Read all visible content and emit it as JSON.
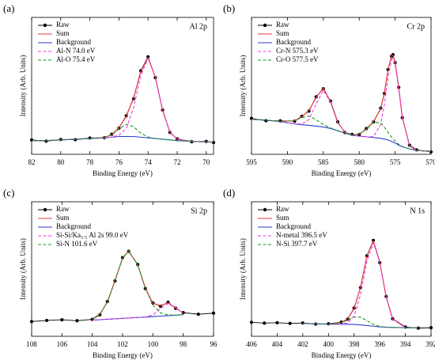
{
  "chart_data": [
    {
      "type": "line",
      "label": "(a)",
      "title": "Al 2p",
      "xlabel": "Binding Energy (eV)",
      "ylabel": "Intensity (Arb. Units)",
      "xlim": [
        82,
        69.5
      ],
      "ylim": [
        0,
        100
      ],
      "xticks": [
        82,
        80,
        78,
        76,
        74,
        72,
        70
      ],
      "x": [
        82,
        81,
        80,
        79,
        78,
        77,
        76.5,
        76,
        75.5,
        75,
        74.5,
        74,
        73.5,
        73,
        72.5,
        72,
        71,
        70,
        69.5
      ],
      "series": [
        {
          "name": "Raw",
          "color": "#000000",
          "marker": "circle",
          "values": [
            10.5,
            9.6,
            10.8,
            10.7,
            11.9,
            12.1,
            14.6,
            19.1,
            28.2,
            40.5,
            61,
            71.2,
            56,
            32.4,
            16,
            11.3,
            9.2,
            9.4,
            8.6
          ]
        },
        {
          "name": "Sum",
          "color": "#e8383d",
          "values": [
            10,
            10,
            10.5,
            11,
            11.5,
            12.3,
            14.3,
            19.5,
            27.7,
            41.1,
            60.4,
            70.6,
            56.5,
            31.9,
            16.3,
            11,
            9.5,
            9,
            9
          ]
        },
        {
          "name": "Background",
          "color": "#2b3bd8",
          "values": [
            10,
            10,
            10.5,
            11,
            11.5,
            12,
            12.5,
            13,
            13,
            13,
            12.5,
            12,
            11.5,
            11,
            10.5,
            10,
            9.5,
            9,
            9
          ]
        },
        {
          "name": "Al-N 74.0 eV",
          "color": "#f03ce0",
          "dash": true,
          "values": [
            10,
            10,
            10.5,
            11,
            11.5,
            12,
            12.6,
            14,
            18.8,
            33.9,
            57.5,
            70,
            56.5,
            31.9,
            16.3,
            11,
            9.5,
            9,
            9
          ]
        },
        {
          "name": "Al-O 75.4 eV",
          "color": "#1a9a1a",
          "dash": true,
          "values": [
            10,
            10,
            10.5,
            11,
            11.5,
            12.3,
            14.2,
            18.5,
            21.9,
            20.2,
            15.4,
            12.6,
            11.5,
            11,
            10.5,
            10,
            9.5,
            9,
            9
          ]
        }
      ]
    },
    {
      "type": "line",
      "label": "(b)",
      "title": "Cr 2p",
      "xlabel": "Binding Energy (eV)",
      "ylabel": "Intensity (Arb. Units)",
      "xlim": [
        595,
        570
      ],
      "ylim": [
        0,
        90
      ],
      "xticks": [
        595,
        590,
        585,
        580,
        575,
        570
      ],
      "x": [
        595,
        593,
        591,
        589,
        588,
        587,
        586,
        585,
        584,
        583,
        582,
        581,
        580,
        579,
        578,
        577,
        576.5,
        576,
        575.5,
        575.3,
        575,
        574.5,
        574,
        573,
        572,
        570
      ],
      "series": [
        {
          "name": "Raw",
          "color": "#000000",
          "marker": "circle",
          "values": [
            23.6,
            22.1,
            22,
            21.8,
            25,
            28.4,
            37.8,
            43.1,
            35,
            21.4,
            14.3,
            13.1,
            13,
            16.9,
            21.3,
            30.4,
            40,
            55.7,
            64.4,
            65.5,
            60.3,
            44,
            24.1,
            6,
            2.9,
            1.6
          ]
        },
        {
          "name": "Sum",
          "color": "#e8383d",
          "values": [
            23,
            22.5,
            21.6,
            22.1,
            24.65,
            28.9,
            37.3,
            43.6,
            34.55,
            20.9,
            14.7,
            12.7,
            13.3,
            16.5,
            21.7,
            29.9,
            40.4,
            55.2,
            64.9,
            65,
            60.8,
            43.5,
            24.6,
            5.6,
            2.5,
            2
          ]
        },
        {
          "name": "Background",
          "color": "#2b3bd8",
          "values": [
            23,
            22.5,
            21.5,
            20,
            19.5,
            19,
            18.5,
            18,
            17,
            15.5,
            14,
            12.5,
            12,
            11.5,
            11,
            10.5,
            10,
            9.5,
            8.5,
            8,
            7.5,
            6,
            5,
            3.5,
            2.5,
            2
          ]
        },
        {
          "name": "Cr-N 575.3 eV",
          "color": "#f03ce0",
          "dash": true,
          "values": [
            23,
            22.5,
            21.5,
            20,
            19.95,
            22.9,
            33.1,
            42,
            34.2,
            20.9,
            14.7,
            12.5,
            12,
            11.5,
            11.6,
            19.8,
            32.6,
            50.2,
            62.2,
            63,
            59.5,
            43,
            24.4,
            5.6,
            2.5,
            2
          ]
        },
        {
          "name": "Cr-O 577.5 eV",
          "color": "#1a9a1a",
          "dash": true,
          "values": [
            23,
            22.5,
            21.6,
            22.1,
            24.2,
            25,
            22.7,
            19.6,
            17.35,
            15.5,
            14,
            12.7,
            13.3,
            16.5,
            21.1,
            20.6,
            17.8,
            14.5,
            11.2,
            10,
            8.8,
            6.5,
            5.2,
            3.5,
            2.5,
            2
          ]
        }
      ]
    },
    {
      "type": "line",
      "label": "(c)",
      "title": "Si 2p",
      "xlabel": "Binding Energy (eV)",
      "ylabel": "Intensity (Arb. Units)",
      "xlim": [
        108,
        96
      ],
      "ylim": [
        0,
        100
      ],
      "xticks": [
        108,
        106,
        104,
        102,
        100,
        98,
        96
      ],
      "x": [
        108,
        107,
        106,
        105,
        104,
        103.5,
        103,
        102.5,
        102,
        101.6,
        101,
        100.5,
        100,
        99.5,
        99,
        98.5,
        98,
        97,
        96
      ],
      "series": [
        {
          "name": "Raw",
          "color": "#000000",
          "marker": "circle",
          "values": [
            11,
            11.8,
            12.3,
            11.6,
            12.6,
            16,
            25.9,
            41.2,
            58.5,
            63.2,
            53.4,
            35.5,
            24.8,
            22.4,
            25.3,
            20.8,
            17.6,
            16.4,
            17.2
          ]
        },
        {
          "name": "Sum",
          "color": "#e8383d",
          "values": [
            null,
            null,
            null,
            null,
            12.9,
            16.43,
            25.47,
            41.6,
            58.03,
            63.6,
            53,
            36.03,
            24.37,
            22.9,
            24.83,
            21.23,
            17.2,
            null,
            null
          ]
        },
        {
          "name": "Background",
          "color": "#2b3bd8",
          "values": [
            null,
            null,
            null,
            null,
            12,
            12.33,
            12.67,
            13,
            13.33,
            13.6,
            14,
            14.33,
            14.67,
            15,
            15.33,
            15.67,
            16,
            null,
            null
          ]
        },
        {
          "name": "Si-Si/Ka₅.₅ Al 2s 99.0 eV",
          "color": "#f03ce0",
          "dash": true,
          "values": [
            null,
            null,
            null,
            null,
            12,
            12.33,
            12.67,
            13,
            13.33,
            13.6,
            14,
            14.43,
            15.87,
            20.5,
            24.33,
            21.17,
            17.2,
            null,
            null
          ]
        },
        {
          "name": "Si-N 101.6 eV",
          "color": "#1a9a1a",
          "dash": true,
          "values": [
            null,
            null,
            null,
            null,
            12.9,
            16.43,
            25.47,
            41.6,
            58.03,
            63.6,
            53,
            35.93,
            23.17,
            17.4,
            15.83,
            15.73,
            16,
            null,
            null
          ]
        }
      ]
    },
    {
      "type": "line",
      "label": "(d)",
      "title": "N 1s",
      "xlabel": "Binding Energy (eV)",
      "ylabel": "Intensity (Arb. Units)",
      "xlim": [
        406,
        392
      ],
      "ylim": [
        0,
        100
      ],
      "xticks": [
        406,
        404,
        402,
        400,
        398,
        396,
        394,
        392
      ],
      "x": [
        406,
        405,
        404,
        403,
        402,
        401,
        400,
        399,
        398.5,
        398,
        397.5,
        397,
        396.5,
        396,
        395.5,
        395,
        394,
        393,
        392
      ],
      "series": [
        {
          "name": "Raw",
          "color": "#000000",
          "marker": "circle",
          "values": [
            10.4,
            9.8,
            10.1,
            9.6,
            9.9,
            9.1,
            9.3,
            10.5,
            12.8,
            21,
            36.2,
            59.9,
            71.3,
            54.8,
            29.6,
            13.1,
            6.9,
            6.1,
            6.4
          ]
        },
        {
          "name": "Sum",
          "color": "#e8383d",
          "values": [
            null,
            null,
            null,
            null,
            9.5,
            9.3,
            9,
            10.2,
            13.1,
            20.5,
            36.7,
            59.6,
            70.9,
            55.3,
            29.2,
            12.8,
            6.5,
            6.3,
            null
          ]
        },
        {
          "name": "Background",
          "color": "#2b3bd8",
          "values": [
            null,
            null,
            null,
            null,
            9.5,
            9.3,
            9,
            9,
            9,
            8.8,
            8.5,
            8,
            7.5,
            7,
            6.8,
            6.6,
            6.4,
            6.3,
            null
          ]
        },
        {
          "name": "N-metal 396.5 eV",
          "color": "#f03ce0",
          "dash": true,
          "values": [
            null,
            null,
            null,
            null,
            9.5,
            9.3,
            9,
            9.1,
            10,
            15,
            30.9,
            56,
            69.5,
            55,
            29.2,
            12.8,
            6.5,
            6.3,
            null
          ]
        },
        {
          "name": "N-Si 397.7 eV",
          "color": "#1a9a1a",
          "dash": true,
          "values": [
            null,
            null,
            null,
            null,
            9.5,
            9.3,
            9,
            10.1,
            12.1,
            14.3,
            14.3,
            11.6,
            8.9,
            7.3,
            6.8,
            6.6,
            6.4,
            6.3,
            null
          ]
        }
      ]
    }
  ]
}
